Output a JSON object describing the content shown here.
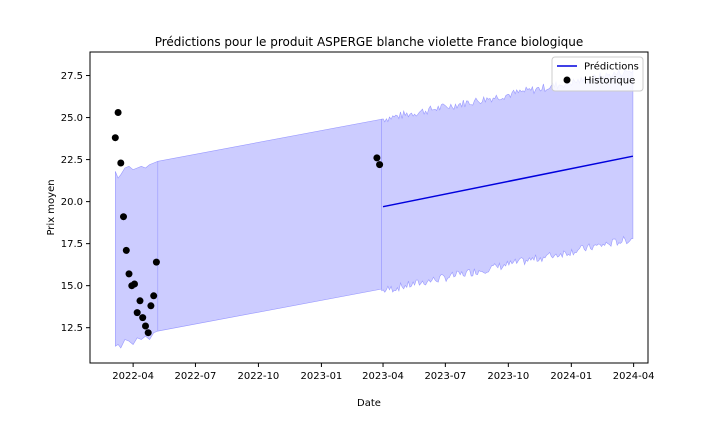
{
  "chart_data": {
    "type": "line",
    "title": "Prédictions pour le produit ASPERGE blanche violette France biologique",
    "xlabel": "Date",
    "ylabel": "Prix moyen",
    "xlim": [
      "2022-01-28",
      "2024-04-22"
    ],
    "ylim": [
      10.4,
      28.9
    ],
    "x_ticks": [
      {
        "date": "2022-04-01",
        "label": "2022-04"
      },
      {
        "date": "2022-07-01",
        "label": "2022-07"
      },
      {
        "date": "2022-10-01",
        "label": "2022-10"
      },
      {
        "date": "2023-01-01",
        "label": "2023-01"
      },
      {
        "date": "2023-04-01",
        "label": "2023-04"
      },
      {
        "date": "2023-07-01",
        "label": "2023-07"
      },
      {
        "date": "2023-10-01",
        "label": "2023-10"
      },
      {
        "date": "2024-01-01",
        "label": "2024-01"
      },
      {
        "date": "2024-04-01",
        "label": "2024-04"
      }
    ],
    "y_ticks": [
      12.5,
      15.0,
      17.5,
      20.0,
      22.5,
      25.0,
      27.5
    ],
    "y_tick_labels": [
      "12.5",
      "15.0",
      "17.5",
      "20.0",
      "22.5",
      "25.0",
      "27.5"
    ],
    "legend": {
      "position": "top-right",
      "entries": [
        "Prédictions",
        "Historique"
      ]
    },
    "series": [
      {
        "name": "Prédictions",
        "kind": "line",
        "color": "#0000dd",
        "x": [
          "2023-04-01",
          "2024-03-31"
        ],
        "y": [
          19.7,
          22.7
        ]
      },
      {
        "name": "Historique",
        "kind": "scatter",
        "color": "#000000",
        "x": [
          "2022-03-06",
          "2022-03-10",
          "2022-03-14",
          "2022-03-18",
          "2022-03-22",
          "2022-03-26",
          "2022-03-30",
          "2022-04-03",
          "2022-04-07",
          "2022-04-11",
          "2022-04-15",
          "2022-04-19",
          "2022-04-23",
          "2022-04-27",
          "2022-05-01",
          "2022-05-05",
          "2023-03-23",
          "2023-03-27"
        ],
        "y": [
          23.8,
          25.3,
          22.3,
          19.1,
          17.1,
          15.7,
          15.0,
          15.1,
          13.4,
          14.1,
          13.1,
          12.6,
          12.2,
          13.8,
          14.4,
          16.4,
          22.6,
          22.2
        ]
      }
    ],
    "interval": {
      "color": "#ccccff",
      "edge_color": "#9999ff",
      "segments": [
        {
          "x": [
            "2022-03-06",
            "2022-03-10",
            "2022-03-14",
            "2022-03-20",
            "2022-03-26",
            "2022-04-01",
            "2022-04-07",
            "2022-04-13",
            "2022-04-19",
            "2022-04-25",
            "2022-05-01",
            "2022-05-07"
          ],
          "upper": [
            21.8,
            21.4,
            21.6,
            22.0,
            22.1,
            21.9,
            22.0,
            22.1,
            22.0,
            22.2,
            22.3,
            22.4
          ],
          "lower": [
            11.4,
            11.5,
            11.3,
            11.8,
            11.7,
            11.5,
            11.9,
            11.8,
            12.0,
            11.8,
            12.2,
            12.3
          ]
        },
        {
          "x": [
            "2022-05-07",
            "2023-03-30"
          ],
          "upper": [
            22.4,
            24.9
          ],
          "lower": [
            12.3,
            14.8
          ]
        },
        {
          "x": [
            "2023-03-30",
            "2024-03-31"
          ],
          "upper_start": 24.9,
          "upper_end": 27.8,
          "lower_start": 14.7,
          "lower_end": 17.8,
          "noise": 0.25
        }
      ]
    }
  }
}
